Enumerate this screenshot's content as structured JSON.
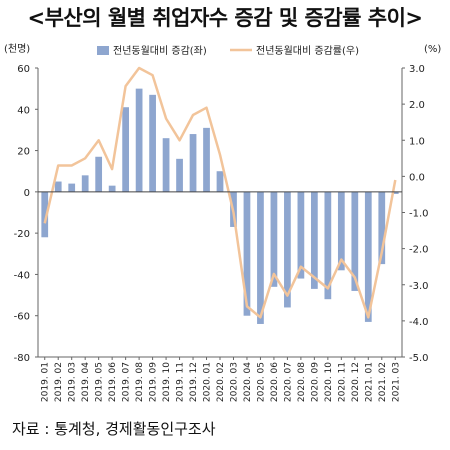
{
  "title": "<부산의 월별 취업자수 증감 및 증감률 추이>",
  "source": "자료 : 통계청, 경제활동인구조사",
  "chart_data": {
    "type": "bar",
    "categories": [
      "2019. 01",
      "2019. 02",
      "2019. 03",
      "2019. 04",
      "2019. 05",
      "2019. 06",
      "2019. 07",
      "2019. 08",
      "2019. 09",
      "2019. 10",
      "2019. 11",
      "2019. 12",
      "2020. 01",
      "2020. 02",
      "2020. 03",
      "2020. 04",
      "2020. 05",
      "2020. 06",
      "2020. 07",
      "2020. 08",
      "2020. 09",
      "2020. 10",
      "2020. 11",
      "2020. 12",
      "2021. 01",
      "2021. 02",
      "2021. 03"
    ],
    "left_unit": "(천명)",
    "right_unit": "(%)",
    "ylim_left": [
      -80,
      60
    ],
    "ylim_right": [
      -5.0,
      3.0
    ],
    "yticks_left": [
      "60",
      "40",
      "20",
      "0",
      "-20",
      "-40",
      "-60",
      "-80"
    ],
    "yticks_right": [
      "3.0",
      "2.0",
      "1.0",
      "0.0",
      "-1.0",
      "-2.0",
      "-3.0",
      "-4.0",
      "-5.0"
    ],
    "legend_position": "top",
    "series": [
      {
        "name": "전년동월대비 증감(좌)",
        "type": "bar",
        "axis": "left",
        "color": "#8ea6cf",
        "values": [
          -22,
          5,
          4,
          8,
          17,
          3,
          41,
          50,
          47,
          26,
          16,
          28,
          31,
          10,
          -17,
          -60,
          -64,
          -46,
          -56,
          -42,
          -47,
          -52,
          -38,
          -48,
          -63,
          -35,
          -1
        ]
      },
      {
        "name": "전년동월대비 증감률(우)",
        "type": "line",
        "axis": "right",
        "color": "#f2c49a",
        "values": [
          -1.3,
          0.3,
          0.3,
          0.5,
          1.0,
          0.2,
          2.5,
          3.0,
          2.8,
          1.6,
          1.0,
          1.7,
          1.9,
          0.6,
          -1.0,
          -3.6,
          -3.9,
          -2.7,
          -3.3,
          -2.5,
          -2.8,
          -3.1,
          -2.3,
          -2.8,
          -3.9,
          -2.1,
          -0.1
        ]
      }
    ]
  }
}
